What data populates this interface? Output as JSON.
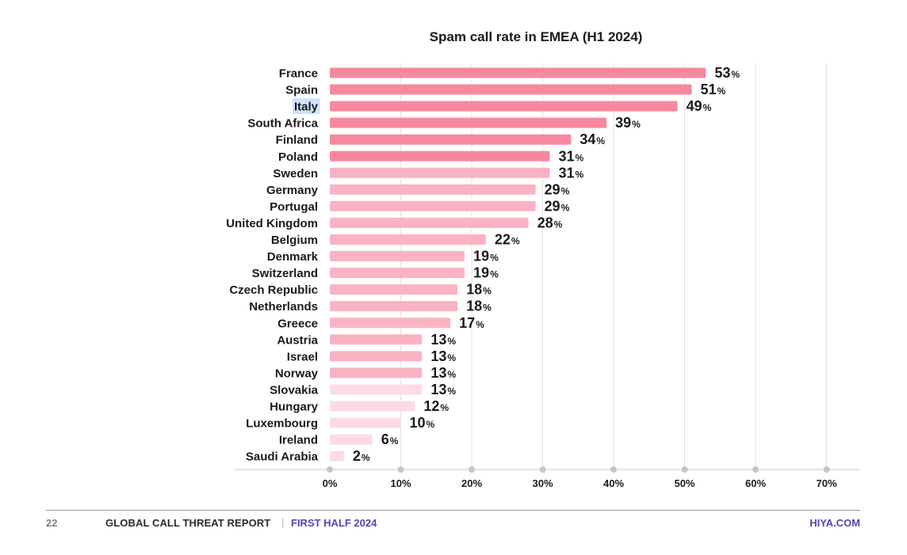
{
  "colors": {
    "high": "#f7889f",
    "mid": "#fab3c3",
    "low": "#fcdce4",
    "grid": "#e3e3e3",
    "axis_dot": "#c6c6c6",
    "text": "#1a1a1a",
    "highlight": "#cfe3fb",
    "brand": "#5b3fb5"
  },
  "chart_data": {
    "type": "bar",
    "orientation": "horizontal",
    "title": "Spam call rate in EMEA (H1 2024)",
    "xlabel": "",
    "ylabel": "",
    "categories": [
      "France",
      "Spain",
      "Italy",
      "South Africa",
      "Finland",
      "Poland",
      "Sweden",
      "Germany",
      "Portugal",
      "United Kingdom",
      "Belgium",
      "Denmark",
      "Switzerland",
      "Czech Republic",
      "Netherlands",
      "Greece",
      "Austria",
      "Israel",
      "Norway",
      "Slovakia",
      "Hungary",
      "Luxembourg",
      "Ireland",
      "Saudi Arabia"
    ],
    "values": [
      53,
      51,
      49,
      39,
      34,
      31,
      31,
      29,
      29,
      28,
      22,
      19,
      19,
      18,
      18,
      17,
      13,
      13,
      13,
      13,
      12,
      10,
      6,
      2
    ],
    "value_suffix": "%",
    "color_groups": [
      "high",
      "high",
      "high",
      "high",
      "high",
      "high",
      "mid",
      "mid",
      "mid",
      "mid",
      "mid",
      "mid",
      "mid",
      "mid",
      "mid",
      "mid",
      "mid",
      "mid",
      "mid",
      "low",
      "low",
      "low",
      "low",
      "low"
    ],
    "highlighted_category": "Italy",
    "xlim": [
      0,
      70
    ],
    "xticks": [
      0,
      10,
      20,
      30,
      40,
      50,
      60,
      70
    ],
    "xtick_labels": [
      "0%",
      "10%",
      "20%",
      "30%",
      "40%",
      "50%",
      "60%",
      "70%"
    ],
    "grid": "vertical",
    "legend": "none"
  },
  "footer": {
    "page_number": "22",
    "report": "GLOBAL CALL THREAT REPORT",
    "separator": "|",
    "period": "FIRST HALF 2024",
    "site": "HIYA.COM"
  }
}
